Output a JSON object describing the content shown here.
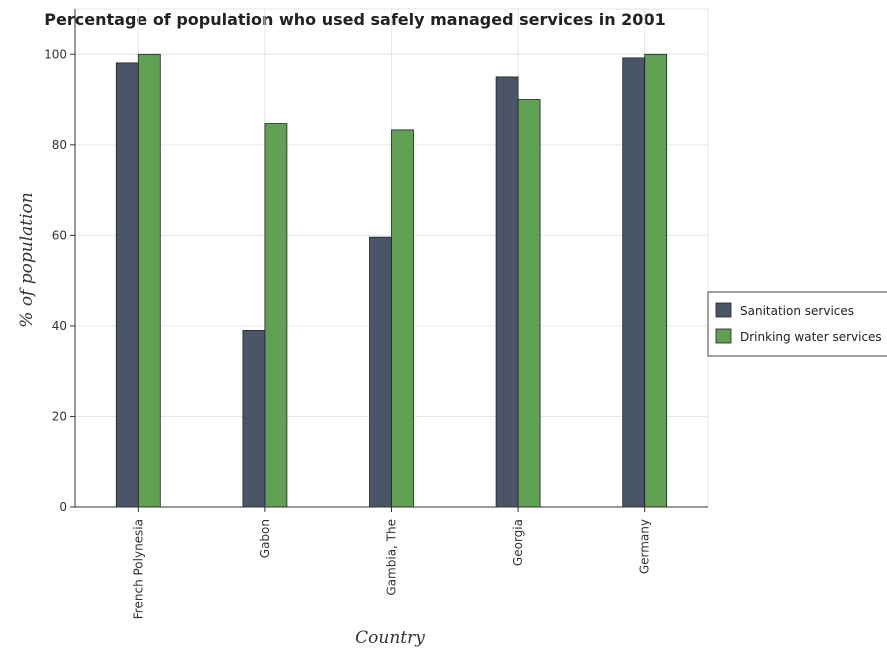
{
  "colors": {
    "sanitation": "#4a5568",
    "drinking": "#5fa052",
    "grid": "#e6e6e6",
    "axis": "#333333"
  },
  "chart_data": {
    "type": "bar",
    "title": "Percentage of population who used safely managed services in 2001",
    "xlabel": "Country",
    "ylabel": "% of population",
    "ylim": [
      0,
      110
    ],
    "yticks": [
      0,
      20,
      40,
      60,
      80,
      100
    ],
    "grid": true,
    "legend_position": "right",
    "categories": [
      "French Polynesia",
      "Gabon",
      "Gambia, The",
      "Georgia",
      "Germany"
    ],
    "series": [
      {
        "name": "Sanitation services",
        "values": [
          98.1,
          39.0,
          59.6,
          95.0,
          99.2
        ]
      },
      {
        "name": "Drinking water services",
        "values": [
          100,
          84.7,
          83.3,
          90.0,
          100
        ]
      }
    ]
  }
}
